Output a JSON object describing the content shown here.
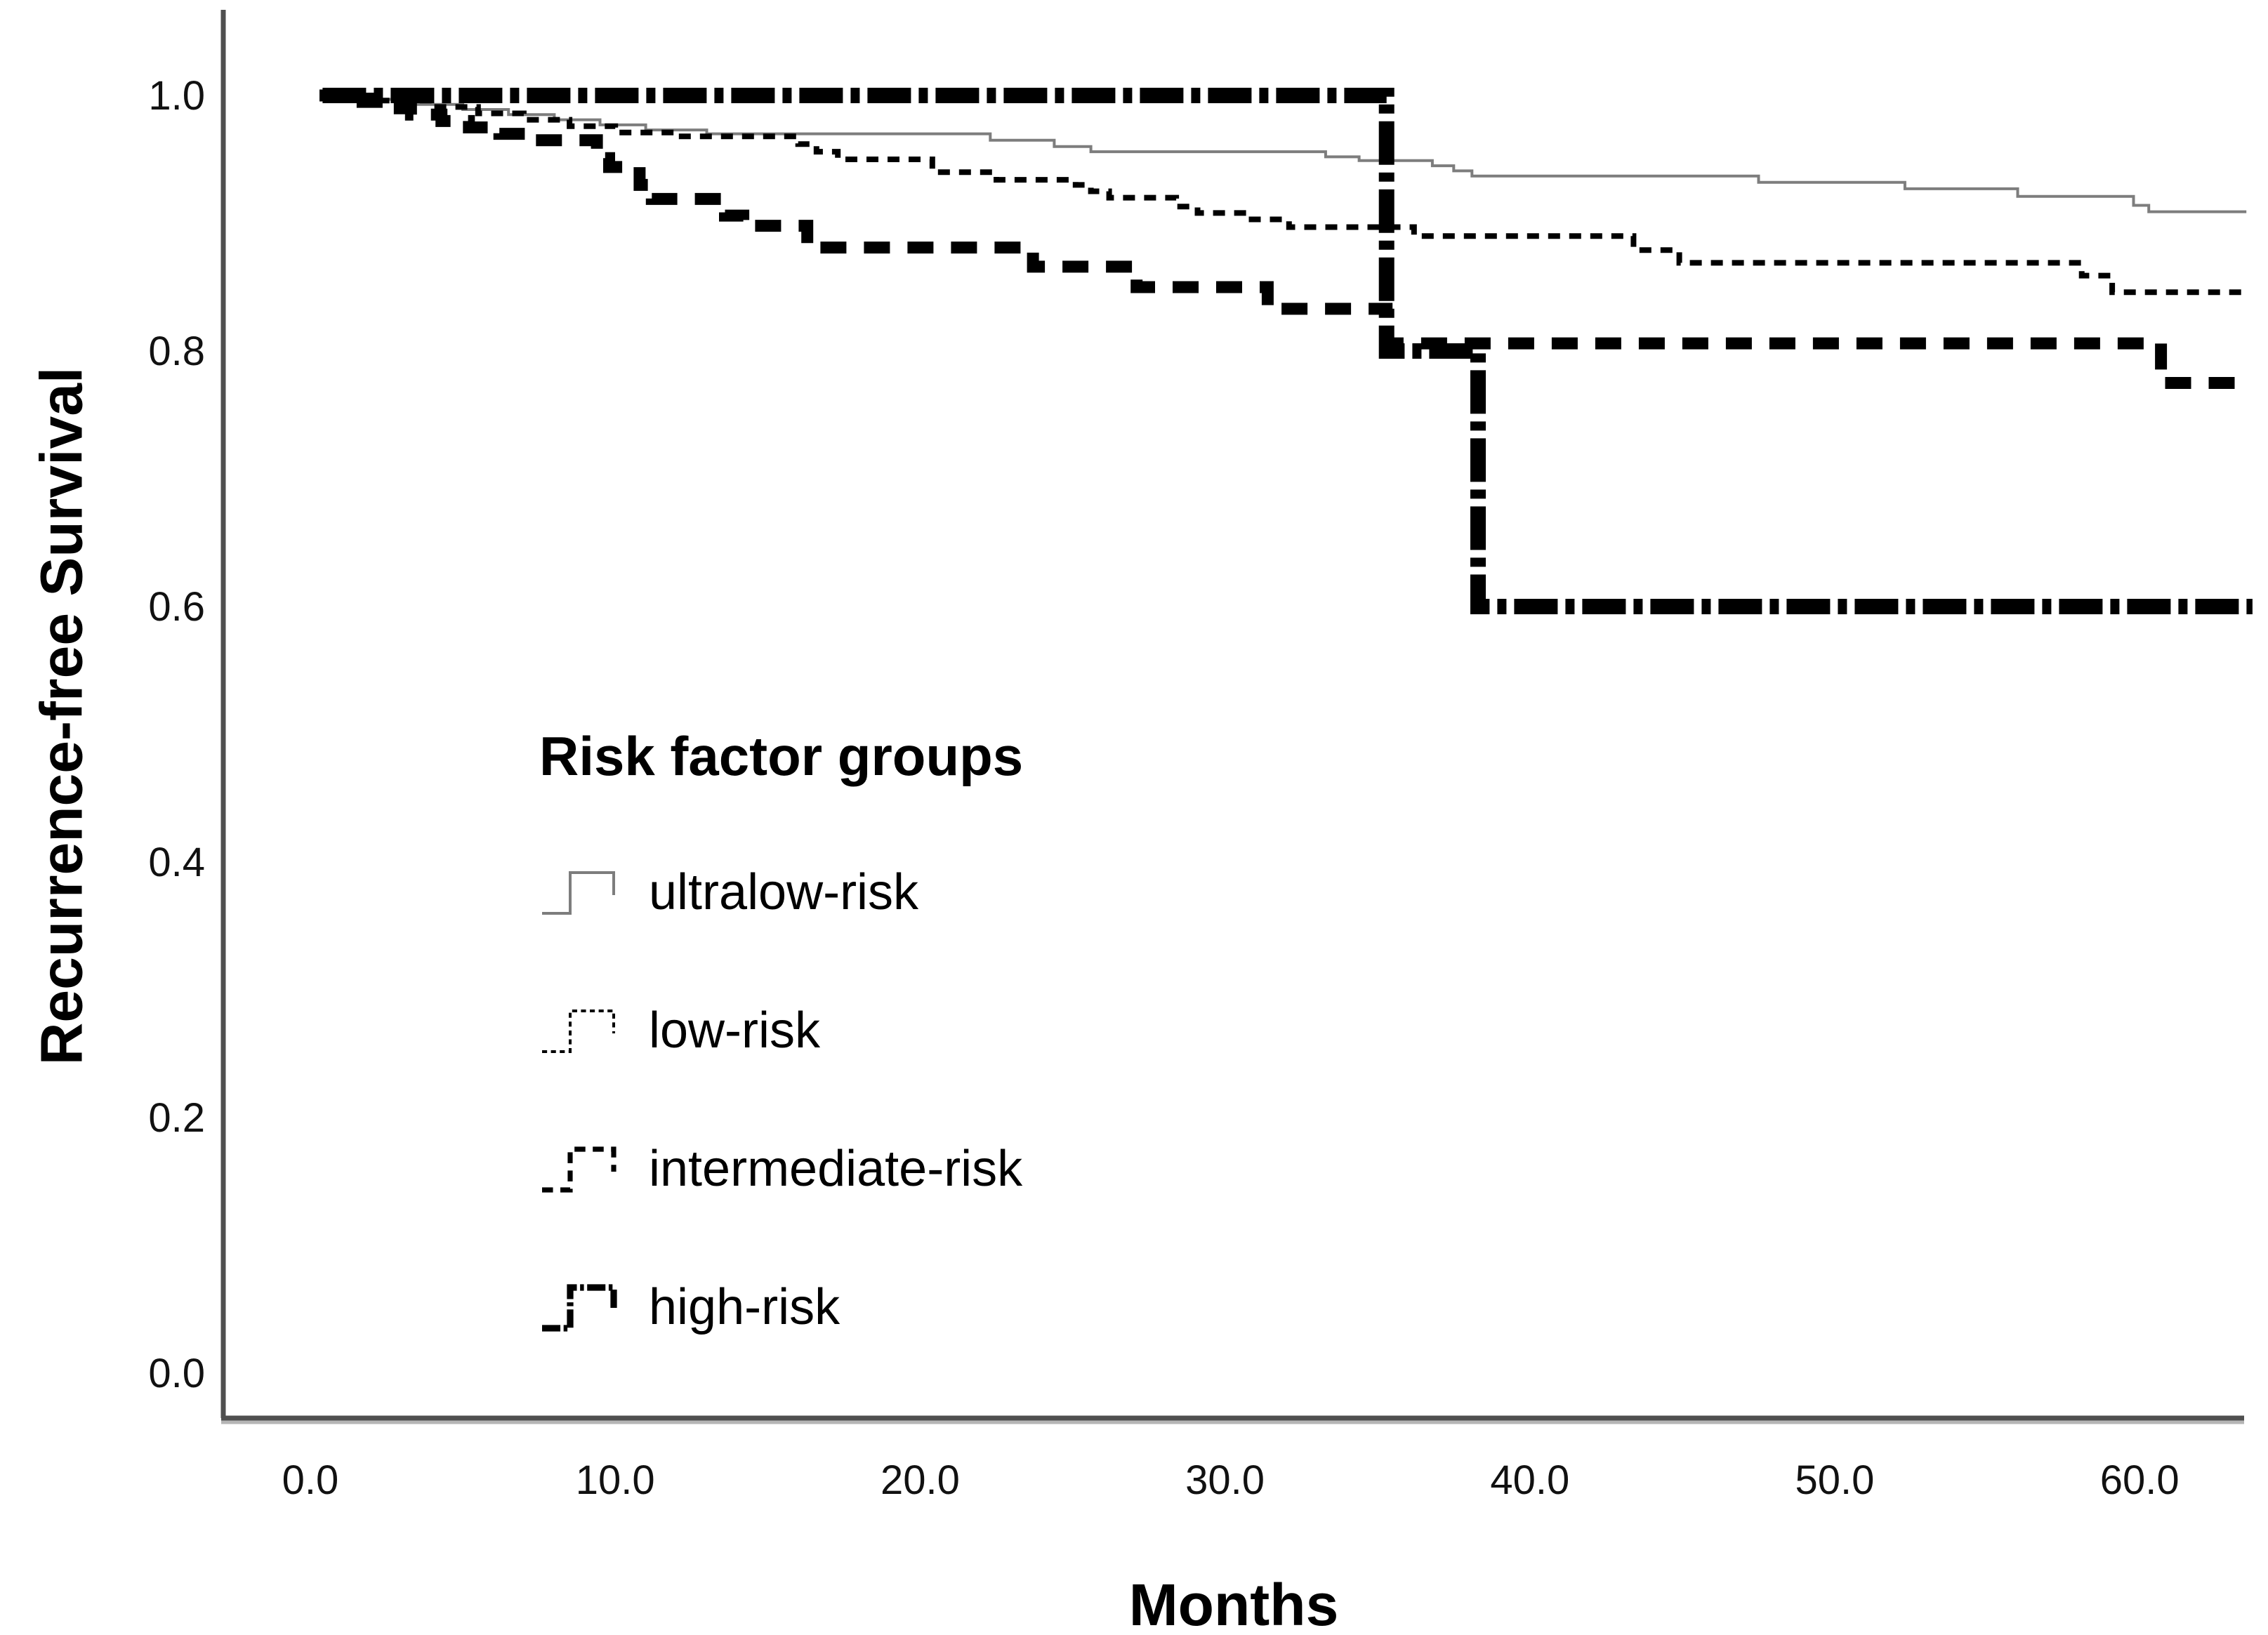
{
  "chart_data": {
    "type": "line",
    "subtype": "kaplan-meier-step",
    "title": "",
    "xlabel": "Months",
    "ylabel": "Recurrence-free Survival",
    "xlim": [
      -2.9,
      64.3
    ],
    "ylim": [
      -0.035,
      1.07
    ],
    "grid": false,
    "legend": {
      "title": "Risk factor groups",
      "position": "inside-left-middle"
    },
    "xticks": [
      0,
      10,
      20,
      30,
      40,
      50,
      60
    ],
    "xtick_labels": [
      "0.0",
      "10.0",
      "20.0",
      "30.0",
      "40.0",
      "50.0",
      "60.0"
    ],
    "yticks": [
      0,
      0.2,
      0.4,
      0.6,
      0.8,
      1.0
    ],
    "ytick_labels": [
      "0.0",
      "0.2",
      "0.4",
      "0.6",
      "0.8",
      "1.0"
    ],
    "colors": {
      "axis": "#4f4f4f",
      "axis_shadow": "#b5b5b5",
      "tick_text": "#111111",
      "ultralow": "#7d7d7d",
      "low": "#000000",
      "intermediate": "#000000",
      "high": "#000000"
    },
    "series": [
      {
        "name": "ultralow-risk",
        "style": "solid",
        "color": "#7d7d7d",
        "width": 4,
        "points": [
          [
            0.3,
            1.0
          ],
          [
            1.5,
            0.997
          ],
          [
            3.0,
            0.993
          ],
          [
            5.0,
            0.989
          ],
          [
            6.5,
            0.985
          ],
          [
            8.0,
            0.981
          ],
          [
            9.5,
            0.977
          ],
          [
            11.0,
            0.973
          ],
          [
            13.0,
            0.97
          ],
          [
            22.3,
            0.965
          ],
          [
            24.4,
            0.96
          ],
          [
            25.6,
            0.956
          ],
          [
            33.3,
            0.952
          ],
          [
            34.4,
            0.949
          ],
          [
            36.8,
            0.945
          ],
          [
            37.5,
            0.941
          ],
          [
            38.1,
            0.937
          ],
          [
            47.5,
            0.932
          ],
          [
            52.3,
            0.927
          ],
          [
            56.0,
            0.921
          ],
          [
            59.8,
            0.914
          ],
          [
            60.3,
            0.909
          ],
          [
            63.5,
            0.909
          ]
        ]
      },
      {
        "name": "low-risk",
        "style": "dotted",
        "color": "#000000",
        "width": 8,
        "points": [
          [
            0.3,
            1.0
          ],
          [
            2.0,
            0.996
          ],
          [
            4.0,
            0.991
          ],
          [
            5.5,
            0.986
          ],
          [
            7.0,
            0.981
          ],
          [
            8.5,
            0.976
          ],
          [
            10.0,
            0.971
          ],
          [
            12.0,
            0.968
          ],
          [
            16.0,
            0.962
          ],
          [
            16.6,
            0.956
          ],
          [
            17.3,
            0.95
          ],
          [
            20.4,
            0.94
          ],
          [
            22.5,
            0.934
          ],
          [
            25.1,
            0.93
          ],
          [
            25.6,
            0.925
          ],
          [
            26.2,
            0.92
          ],
          [
            28.4,
            0.913
          ],
          [
            29.1,
            0.908
          ],
          [
            30.7,
            0.903
          ],
          [
            32.1,
            0.897
          ],
          [
            36.2,
            0.89
          ],
          [
            43.4,
            0.879
          ],
          [
            44.9,
            0.869
          ],
          [
            58.1,
            0.859
          ],
          [
            59.1,
            0.846
          ],
          [
            63.4,
            0.846
          ]
        ]
      },
      {
        "name": "intermediate-risk",
        "style": "dashed",
        "color": "#000000",
        "width": 17,
        "points": [
          [
            0.3,
            1.0
          ],
          [
            1.4,
            0.995
          ],
          [
            2.4,
            0.99
          ],
          [
            3.3,
            0.985
          ],
          [
            4.3,
            0.98
          ],
          [
            5.2,
            0.975
          ],
          [
            6.2,
            0.97
          ],
          [
            7.4,
            0.965
          ],
          [
            9.4,
            0.951
          ],
          [
            9.8,
            0.944
          ],
          [
            10.8,
            0.93
          ],
          [
            11.2,
            0.919
          ],
          [
            13.6,
            0.906
          ],
          [
            14.2,
            0.898
          ],
          [
            16.3,
            0.881
          ],
          [
            23.7,
            0.866
          ],
          [
            27.1,
            0.85
          ],
          [
            31.4,
            0.833
          ],
          [
            35.3,
            0.806
          ],
          [
            60.7,
            0.775
          ],
          [
            63.4,
            0.775
          ]
        ]
      },
      {
        "name": "high-risk",
        "style": "dashdot",
        "color": "#000000",
        "width": 22,
        "points": [
          [
            0.4,
            1.0
          ],
          [
            35.3,
            0.8
          ],
          [
            38.3,
            0.6
          ],
          [
            63.7,
            0.6
          ]
        ]
      }
    ]
  }
}
